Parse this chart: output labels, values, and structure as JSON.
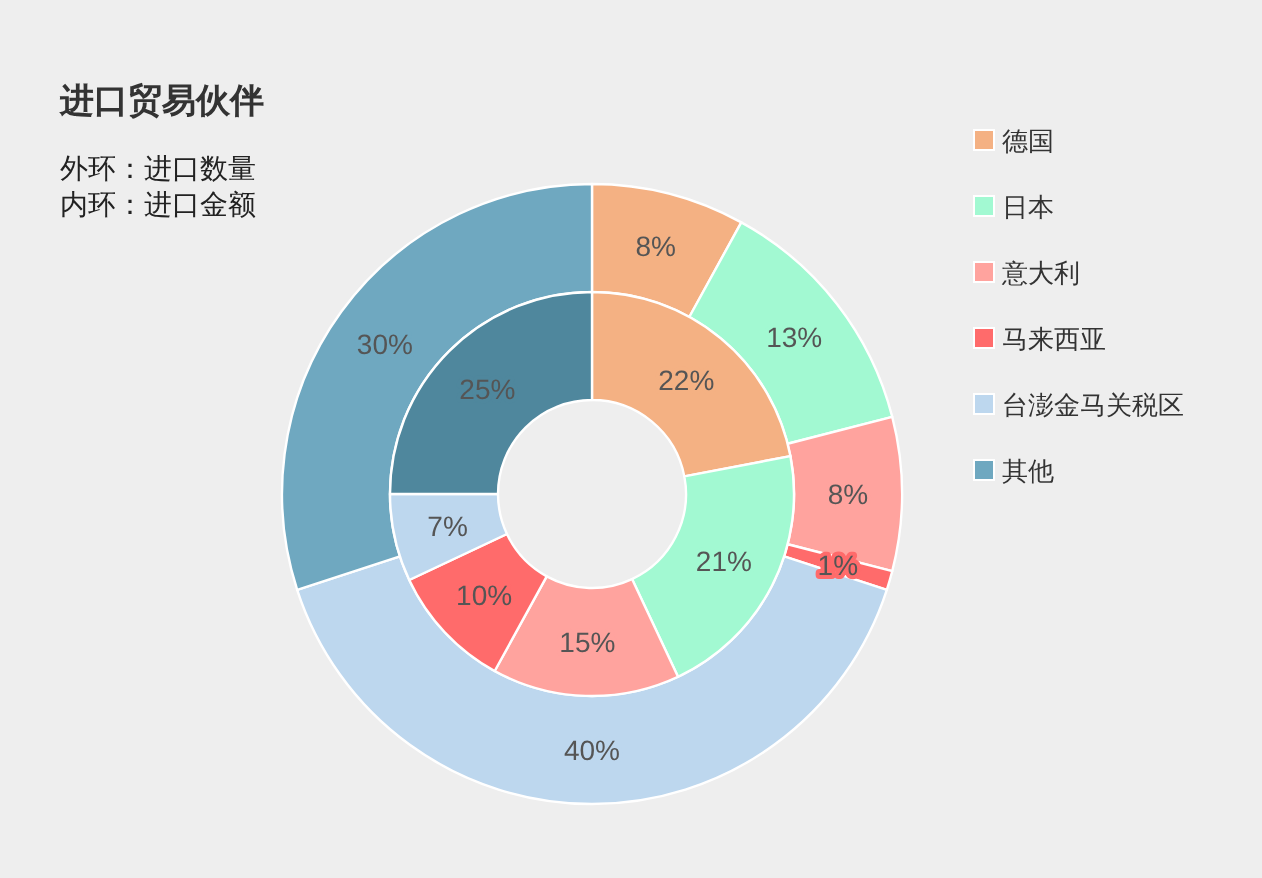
{
  "chart_data": {
    "type": "donut",
    "title": "进口贸易伙伴",
    "annotations": [
      "外环：进口数量",
      "内环：进口金额"
    ],
    "categories": [
      "德国",
      "日本",
      "意大利",
      "马来西亚",
      "台澎金马关税区",
      "其他"
    ],
    "series": [
      {
        "values": [
          8,
          13,
          8,
          1,
          40,
          30
        ],
        "value_labels": [
          "8%",
          "13%",
          "8%",
          "1%",
          "40%",
          "30%"
        ],
        "colors": [
          "#f4b183",
          "#a2f9d2",
          "#ffa39e",
          "#ff6b6b",
          "#bdd7ee",
          "#6fa8c0"
        ]
      },
      {
        "values": [
          22,
          21,
          15,
          10,
          7,
          25
        ],
        "value_labels": [
          "22%",
          "21%",
          "15%",
          "10%",
          "7%",
          "25%"
        ],
        "colors": [
          "#f4b183",
          "#a2f9d2",
          "#ffa39e",
          "#ff6b6b",
          "#bdd7ee",
          "#4f879d"
        ]
      }
    ],
    "legend": "top right"
  }
}
